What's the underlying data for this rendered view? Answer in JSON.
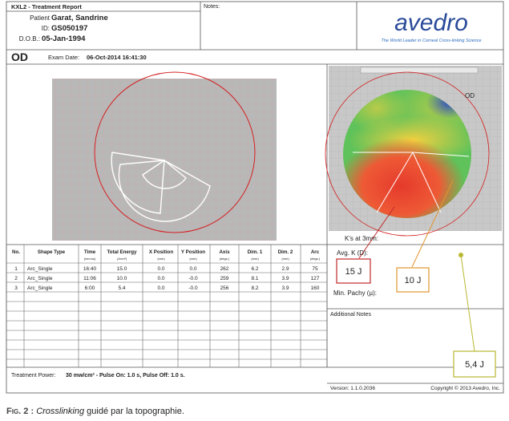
{
  "header": {
    "title": "KXL2 - Treatment Report",
    "patient_label": "Patient",
    "patient": "Garat, Sandrine",
    "id_label": "ID:",
    "id": "GS050197",
    "dob_label": "D.O.B.:",
    "dob": "05-Jan-1994",
    "notes_label": "Notes:",
    "logo": "avedro",
    "tagline": "The World Leader in Corneal Cross-linking Science"
  },
  "exam": {
    "eye": "OD",
    "date_label": "Exam Date:",
    "date": "06-Oct-2014 16:41:30"
  },
  "table": {
    "columns": [
      {
        "name": "No.",
        "unit": ""
      },
      {
        "name": "Shape Type",
        "unit": ""
      },
      {
        "name": "Time",
        "unit": "(mm:ss)"
      },
      {
        "name": "Total Energy",
        "unit": "(J/cm²)"
      },
      {
        "name": "X Position",
        "unit": "(mm)"
      },
      {
        "name": "Y Position",
        "unit": "(mm)"
      },
      {
        "name": "Axis",
        "unit": "(degs.)"
      },
      {
        "name": "Dim. 1",
        "unit": "(mm)"
      },
      {
        "name": "Dim. 2",
        "unit": "(mm)"
      },
      {
        "name": "Arc",
        "unit": "(degs.)"
      }
    ],
    "rows": [
      [
        "1",
        "Arc_Single",
        "16:40",
        "15.0",
        "0.0",
        "0.0",
        "262",
        "6.2",
        "2.9",
        "75"
      ],
      [
        "2",
        "Arc_Single",
        "11:06",
        "10.0",
        "0.0",
        "-0.0",
        "259",
        "8.1",
        "3.9",
        "127"
      ],
      [
        "3",
        "Arc_Single",
        "6:00",
        "5.4",
        "0.0",
        "-0.0",
        "256",
        "8.2",
        "3.9",
        "160"
      ]
    ]
  },
  "keratometry": {
    "title": "K's at 3mm:",
    "avg_k": "Avg. K (D):",
    "min_pachy": "Min. Pachy (µ):"
  },
  "map": {
    "eye": "OD"
  },
  "callouts": [
    "15 J",
    "10 J",
    "5,4 J"
  ],
  "additional_notes": "Additional Notes",
  "footer": {
    "power_label": "Treatment Power:",
    "power": "30 mw/cm² - Pulse On: 1.0 s, Pulse Off: 1.0 s.",
    "version": "Version: 1.1.0.2036",
    "copyright": "Copyright © 2013 Avedro, Inc."
  },
  "caption": {
    "label": "Fig. 2 :",
    "italic": "Crosslinking",
    "text": " guidé par la topographie."
  }
}
